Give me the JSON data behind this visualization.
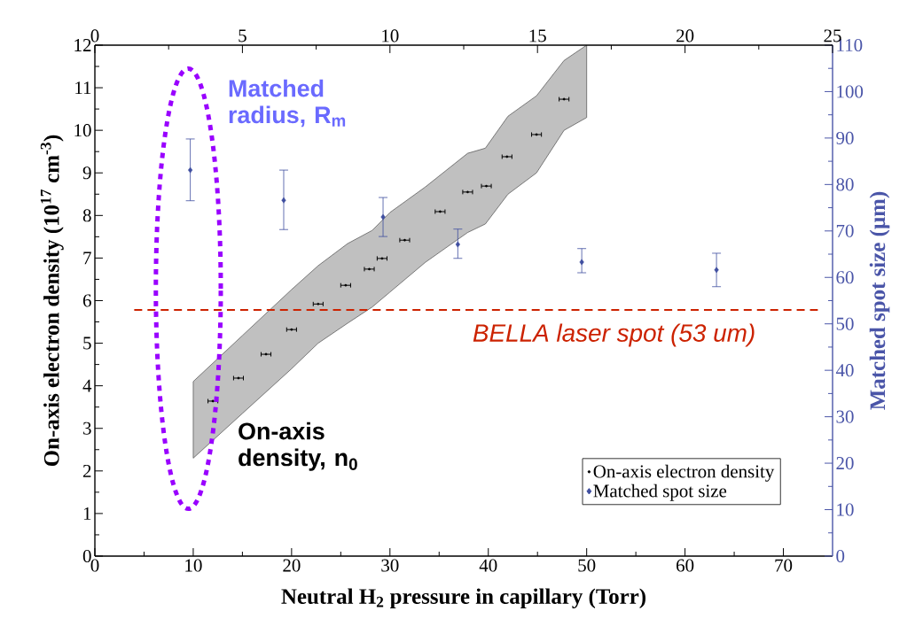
{
  "chart_data": {
    "type": "scatter",
    "xlabel": "Neutral H$_{2}$ pressure in capillary (Torr)",
    "ylabel": "On-axis electron density (10$^{17}$ cm$^{-3}$)",
    "y2label": "Matched spot size (µm)",
    "xlim": [
      0,
      75
    ],
    "xticks": [
      0,
      10,
      20,
      30,
      40,
      50,
      60,
      70
    ],
    "ylim": [
      0,
      12
    ],
    "yticks": [
      0,
      1,
      2,
      3,
      4,
      5,
      6,
      7,
      8,
      9,
      10,
      11,
      12
    ],
    "y2lim": [
      0,
      110
    ],
    "y2ticks": [
      0,
      10,
      20,
      30,
      40,
      50,
      60,
      70,
      80,
      90,
      100,
      110
    ],
    "x2lim": [
      0,
      25
    ],
    "x2ticks": [
      0,
      5,
      10,
      15,
      20,
      25
    ],
    "legend": "bottom right",
    "series": [
      {
        "name": "On-axis electron density",
        "color": "#000000",
        "marker": "circle",
        "x": [
          12.0,
          14.6,
          17.4,
          20.0,
          22.7,
          25.5,
          27.9,
          29.2,
          31.5,
          35.1,
          37.9,
          39.8,
          41.9,
          44.9,
          47.7
        ],
        "values": [
          3.64,
          4.18,
          4.74,
          5.32,
          5.92,
          6.36,
          6.74,
          6.99,
          7.42,
          8.09,
          8.55,
          8.69,
          9.38,
          9.9,
          10.73
        ],
        "xerrors": [
          0.5,
          0.5,
          0.5,
          0.5,
          0.5,
          0.5,
          0.5,
          0.5,
          0.5,
          0.5,
          0.5,
          0.5,
          0.5,
          0.5,
          0.5
        ]
      },
      {
        "type": "area",
        "color": "#c0c0c0",
        "x": [
          10,
          15,
          20,
          22.7,
          25.7,
          28.2,
          30,
          33.6,
          37.9,
          39.7,
          42,
          44.9,
          47.7,
          50
        ],
        "values": [
          null,
          null,
          null,
          null,
          null,
          null,
          null,
          null,
          null,
          null,
          null,
          null,
          null,
          null
        ],
        "lower": [
          2.3,
          3.35,
          4.4,
          5.0,
          5.47,
          5.85,
          6.2,
          6.9,
          7.6,
          7.8,
          8.5,
          9.0,
          10.0,
          10.3
        ],
        "upper": [
          4.1,
          5.18,
          6.26,
          6.82,
          7.34,
          7.65,
          8.07,
          8.67,
          9.46,
          9.58,
          10.33,
          10.81,
          11.64,
          12.0
        ]
      },
      {
        "name": "Matched spot size",
        "axis": "y2",
        "color": "#3f4ea0",
        "marker": "diamond",
        "x": [
          9.7,
          19.2,
          29.3,
          36.9,
          49.5,
          63.2
        ],
        "values": [
          83.1,
          76.6,
          73.0,
          67.1,
          63.3,
          61.6
        ],
        "errors": [
          [
            76.5,
            89.8
          ],
          [
            70.3,
            83.1
          ],
          [
            68.8,
            77.2
          ],
          [
            64.1,
            70.4
          ],
          [
            61.0,
            66.2
          ],
          [
            58.0,
            65.2
          ]
        ]
      }
    ],
    "ref_lines": [
      {
        "axis": "y2",
        "value": 53,
        "label": "BELLA laser spot (53 um)",
        "color": "#cc2200",
        "line_style": "dashed"
      }
    ],
    "annotations": [
      "Matched radius, R$_{m}$",
      "On-axis density, n$_{0}$"
    ]
  }
}
